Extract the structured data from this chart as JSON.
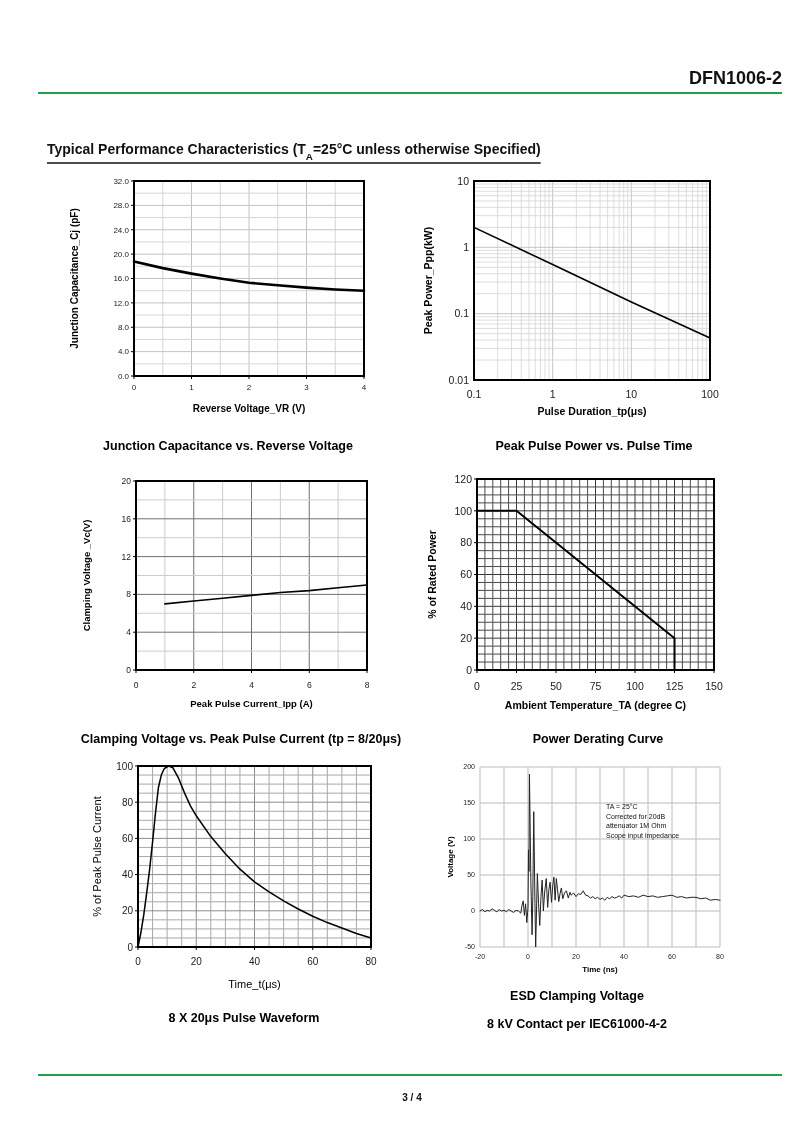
{
  "chart_data": [
    {
      "type": "line",
      "title": "Junction Capacitance vs. Reverse Voltage",
      "xlabel": "Reverse Voltage_VR (V)",
      "ylabel": "Junction Capacitance_Cj (pF)",
      "x": [
        0,
        0.5,
        1,
        1.5,
        2,
        2.5,
        3,
        3.5,
        4
      ],
      "series": [
        {
          "color": "#000000",
          "values": [
            18.8,
            17.7,
            16.8,
            16.0,
            15.3,
            14.9,
            14.5,
            14.2,
            14.0
          ]
        }
      ],
      "xlim": [
        0,
        4
      ],
      "ylim": [
        0,
        32
      ],
      "xticks": [
        0,
        {
          "value": 0.5,
          "label": null
        },
        1,
        {
          "value": 1.5,
          "label": null
        },
        2,
        {
          "value": 2.5,
          "label": null
        },
        3,
        {
          "value": 3.5,
          "label": null
        },
        4
      ],
      "yticks": [
        {
          "value": 0,
          "label": "0.0"
        },
        {
          "value": 2,
          "label": null
        },
        {
          "value": 4,
          "label": "4.0"
        },
        {
          "value": 6,
          "label": null
        },
        {
          "value": 8,
          "label": "8.0"
        },
        {
          "value": 10,
          "label": null
        },
        {
          "value": 12,
          "label": "12.0"
        },
        {
          "value": 14,
          "label": null
        },
        {
          "value": 16,
          "label": "16.0"
        },
        {
          "value": 18,
          "label": null
        },
        {
          "value": 20,
          "label": "20.0"
        },
        {
          "value": 22,
          "label": null
        },
        {
          "value": 24,
          "label": "24.0"
        },
        {
          "value": 26,
          "label": null
        },
        {
          "value": 28,
          "label": "28.0"
        },
        {
          "value": 30,
          "label": null
        },
        {
          "value": 32,
          "label": "32.0"
        }
      ],
      "grid": true,
      "annotations": [
        "Typical Performance Characteristics (T$_{A}$=25°C unless otherwise Specified)",
        "DFN1006-2"
      ]
    },
    {
      "type": "line",
      "title": "Peak Pulse Power vs. Pulse Time",
      "xlabel": "Pulse Duration_tp(μs)",
      "ylabel": "Peak Power_Ppp(kW)",
      "x": [
        0.1,
        1,
        10,
        100
      ],
      "series": [
        {
          "color": "#000000",
          "values": [
            2,
            0.55,
            0.15,
            0.043
          ]
        }
      ],
      "log": "xy",
      "xlim": [
        0.1,
        100
      ],
      "ylim": [
        0.01,
        10
      ],
      "xticks": [
        0.1,
        {
          "value": 0.2,
          "label": null
        },
        {
          "value": 0.3,
          "label": null
        },
        {
          "value": 0.4,
          "label": null
        },
        {
          "value": 0.5,
          "label": null
        },
        {
          "value": 0.6,
          "label": null
        },
        {
          "value": 0.7,
          "label": null
        },
        {
          "value": 0.8,
          "label": null
        },
        {
          "value": 0.9,
          "label": null
        },
        1,
        {
          "value": 2,
          "label": null
        },
        {
          "value": 3,
          "label": null
        },
        {
          "value": 4,
          "label": null
        },
        {
          "value": 5,
          "label": null
        },
        {
          "value": 6,
          "label": null
        },
        {
          "value": 7,
          "label": null
        },
        {
          "value": 8,
          "label": null
        },
        {
          "value": 9,
          "label": null
        },
        10,
        {
          "value": 20,
          "label": null
        },
        {
          "value": 30,
          "label": null
        },
        {
          "value": 40,
          "label": null
        },
        {
          "value": 50,
          "label": null
        },
        {
          "value": 60,
          "label": null
        },
        {
          "value": 70,
          "label": null
        },
        {
          "value": 80,
          "label": null
        },
        {
          "value": 90,
          "label": null
        },
        100
      ],
      "yticks": [
        0.01,
        {
          "value": 0.02,
          "label": null
        },
        {
          "value": 0.03,
          "label": null
        },
        {
          "value": 0.04,
          "label": null
        },
        {
          "value": 0.05,
          "label": null
        },
        {
          "value": 0.06,
          "label": null
        },
        {
          "value": 0.07,
          "label": null
        },
        {
          "value": 0.08,
          "label": null
        },
        {
          "value": 0.09,
          "label": null
        },
        0.1,
        {
          "value": 0.2,
          "label": null
        },
        {
          "value": 0.3,
          "label": null
        },
        {
          "value": 0.4,
          "label": null
        },
        {
          "value": 0.5,
          "label": null
        },
        {
          "value": 0.6,
          "label": null
        },
        {
          "value": 0.7,
          "label": null
        },
        {
          "value": 0.8,
          "label": null
        },
        {
          "value": 0.9,
          "label": null
        },
        1,
        {
          "value": 2,
          "label": null
        },
        {
          "value": 3,
          "label": null
        },
        {
          "value": 4,
          "label": null
        },
        {
          "value": 5,
          "label": null
        },
        {
          "value": 6,
          "label": null
        },
        {
          "value": 7,
          "label": null
        },
        {
          "value": 8,
          "label": null
        },
        {
          "value": 9,
          "label": null
        },
        10
      ],
      "grid": true
    },
    {
      "type": "line",
      "title": "Clamping Voltage vs. Peak Pulse Current (tp = 8/20μs)",
      "xlabel": "Peak Pulse Current_Ipp (A)",
      "ylabel": "Clamping Voltage _Vc(V)",
      "x": [
        1,
        2,
        3,
        4,
        5,
        6,
        7,
        8
      ],
      "series": [
        {
          "color": "#000000",
          "values": [
            7.0,
            7.3,
            7.6,
            7.9,
            8.2,
            8.4,
            8.7,
            9.0
          ]
        }
      ],
      "xlim": [
        0,
        8
      ],
      "ylim": [
        0,
        20
      ],
      "xticks": [
        0,
        {
          "value": 1,
          "label": null
        },
        2,
        {
          "value": 3,
          "label": null
        },
        4,
        {
          "value": 5,
          "label": null
        },
        6,
        {
          "value": 7,
          "label": null
        },
        8
      ],
      "yticks": [
        0,
        {
          "value": 2,
          "label": null
        },
        4,
        {
          "value": 6,
          "label": null
        },
        8,
        {
          "value": 10,
          "label": null
        },
        12,
        {
          "value": 14,
          "label": null
        },
        16,
        {
          "value": 18,
          "label": null
        },
        20
      ],
      "grid": true
    },
    {
      "type": "line",
      "title": "Power Derating Curve",
      "xlabel": "Ambient Temperature_TA (degree C)",
      "ylabel": "% of Rated Power",
      "x": [
        0,
        25,
        125,
        125
      ],
      "series": [
        {
          "color": "#000000",
          "values": [
            100,
            100,
            20,
            0
          ]
        }
      ],
      "xlim": [
        0,
        150
      ],
      "ylim": [
        0,
        120
      ],
      "xticks": [
        0,
        {
          "value": 5,
          "label": null
        },
        {
          "value": 10,
          "label": null
        },
        {
          "value": 15,
          "label": null
        },
        {
          "value": 20,
          "label": null
        },
        25,
        {
          "value": 30,
          "label": null
        },
        {
          "value": 35,
          "label": null
        },
        {
          "value": 40,
          "label": null
        },
        {
          "value": 45,
          "label": null
        },
        50,
        {
          "value": 55,
          "label": null
        },
        {
          "value": 60,
          "label": null
        },
        {
          "value": 65,
          "label": null
        },
        {
          "value": 70,
          "label": null
        },
        75,
        {
          "value": 80,
          "label": null
        },
        {
          "value": 85,
          "label": null
        },
        {
          "value": 90,
          "label": null
        },
        {
          "value": 95,
          "label": null
        },
        100,
        {
          "value": 105,
          "label": null
        },
        {
          "value": 110,
          "label": null
        },
        {
          "value": 115,
          "label": null
        },
        {
          "value": 120,
          "label": null
        },
        125,
        {
          "value": 130,
          "label": null
        },
        {
          "value": 135,
          "label": null
        },
        {
          "value": 140,
          "label": null
        },
        {
          "value": 145,
          "label": null
        },
        150
      ],
      "yticks": [
        0,
        {
          "value": 5,
          "label": null
        },
        {
          "value": 10,
          "label": null
        },
        {
          "value": 15,
          "label": null
        },
        20,
        {
          "value": 25,
          "label": null
        },
        {
          "value": 30,
          "label": null
        },
        {
          "value": 35,
          "label": null
        },
        40,
        {
          "value": 45,
          "label": null
        },
        {
          "value": 50,
          "label": null
        },
        {
          "value": 55,
          "label": null
        },
        60,
        {
          "value": 65,
          "label": null
        },
        {
          "value": 70,
          "label": null
        },
        {
          "value": 75,
          "label": null
        },
        80,
        {
          "value": 85,
          "label": null
        },
        {
          "value": 90,
          "label": null
        },
        {
          "value": 95,
          "label": null
        },
        100,
        {
          "value": 105,
          "label": null
        },
        {
          "value": 110,
          "label": null
        },
        {
          "value": 115,
          "label": null
        },
        120
      ],
      "grid": true
    },
    {
      "type": "line",
      "title": "8 X 20μs Pulse Waveform",
      "xlabel": "Time_t(μs)",
      "ylabel": "% of Peak Pulse Current",
      "x": [
        0,
        1,
        2,
        3,
        4,
        5,
        6,
        7,
        8,
        9,
        10.5,
        12,
        14,
        16,
        18,
        20,
        25,
        30,
        35,
        40,
        45,
        50,
        55,
        60,
        65,
        70,
        75,
        80
      ],
      "series": [
        {
          "color": "#000000",
          "values": [
            0,
            8,
            18,
            30,
            43,
            58,
            74,
            88,
            95,
            98.5,
            100,
            99,
            93,
            85,
            78,
            72.5,
            61,
            51.5,
            43,
            36,
            30.5,
            25.5,
            21,
            17,
            13.5,
            10.5,
            7.5,
            5
          ]
        }
      ],
      "xlim": [
        0,
        80
      ],
      "ylim": [
        0,
        100
      ],
      "xticks": [
        0,
        {
          "value": 5,
          "label": null
        },
        {
          "value": 10,
          "label": null
        },
        {
          "value": 15,
          "label": null
        },
        20,
        {
          "value": 25,
          "label": null
        },
        {
          "value": 30,
          "label": null
        },
        {
          "value": 35,
          "label": null
        },
        40,
        {
          "value": 45,
          "label": null
        },
        {
          "value": 50,
          "label": null
        },
        {
          "value": 55,
          "label": null
        },
        60,
        {
          "value": 65,
          "label": null
        },
        {
          "value": 70,
          "label": null
        },
        {
          "value": 75,
          "label": null
        },
        80
      ],
      "yticks": [
        0,
        {
          "value": 5,
          "label": null
        },
        {
          "value": 10,
          "label": null
        },
        {
          "value": 15,
          "label": null
        },
        20,
        {
          "value": 25,
          "label": null
        },
        {
          "value": 30,
          "label": null
        },
        {
          "value": 35,
          "label": null
        },
        40,
        {
          "value": 45,
          "label": null
        },
        {
          "value": 50,
          "label": null
        },
        {
          "value": 55,
          "label": null
        },
        60,
        {
          "value": 65,
          "label": null
        },
        {
          "value": 70,
          "label": null
        },
        {
          "value": 75,
          "label": null
        },
        80,
        {
          "value": 85,
          "label": null
        },
        {
          "value": 90,
          "label": null
        },
        {
          "value": 95,
          "label": null
        },
        100
      ],
      "grid": true
    },
    {
      "type": "line",
      "title": "ESD Clamping Voltage",
      "subtitle": "8 kV Contact per IEC61000-4-2",
      "xlabel": "Time (ns)",
      "ylabel": "Voltage (V)",
      "x": [
        -20,
        -19,
        -18,
        -17,
        -16,
        -15,
        -14,
        -13,
        -12,
        -11,
        -10,
        -9,
        -8,
        -7,
        -6,
        -5,
        -4,
        -3,
        -2.5,
        -2,
        -1.5,
        -1,
        -0.5,
        0,
        0.2,
        0.4,
        0.6,
        1.2,
        1.7,
        2,
        2.4,
        2.9,
        3.2,
        3.9,
        4.4,
        4.9,
        5.4,
        5.9,
        6.4,
        6.9,
        7.6,
        8.2,
        8.7,
        9.2,
        9.8,
        10.3,
        10.8,
        11.3,
        11.8,
        12.3,
        12.8,
        13.4,
        13.9,
        14.5,
        15.2,
        16,
        16.8,
        17.5,
        18,
        19,
        20,
        21,
        22,
        23,
        24,
        25,
        26,
        27,
        28,
        29,
        30,
        31,
        32,
        33,
        34,
        35,
        36,
        37,
        38,
        39,
        40,
        42,
        44,
        46,
        48,
        50,
        52,
        54,
        56,
        58,
        60,
        62,
        64,
        66,
        68,
        70,
        72,
        74,
        76,
        78,
        80
      ],
      "series": [
        {
          "color": "#222222",
          "values": [
            0,
            2,
            -1,
            1,
            0,
            3,
            1,
            -1,
            2,
            0,
            1,
            -1,
            2,
            0,
            -2,
            1,
            0,
            -3,
            8,
            14,
            -6,
            10,
            -16,
            5,
            85,
            55,
            190,
            40,
            -33,
            20,
            138,
            10,
            -50,
            52,
            10,
            -20,
            20,
            43,
            0,
            25,
            45,
            5,
            30,
            40,
            12,
            35,
            47,
            15,
            45,
            30,
            13,
            25,
            32,
            17,
            25,
            28,
            18,
            26,
            22,
            25,
            20,
            24,
            23,
            28,
            22,
            21,
            18,
            20,
            17,
            19,
            16,
            18,
            15,
            19,
            17,
            20,
            18,
            19,
            21,
            18,
            22,
            20,
            21,
            19,
            22,
            20,
            21,
            19,
            20,
            21,
            22,
            19,
            20,
            18,
            19,
            19,
            17,
            18,
            15,
            16,
            15
          ]
        }
      ],
      "xlim": [
        -20,
        80
      ],
      "ylim": [
        -50,
        200
      ],
      "xticks": [
        -20,
        {
          "value": -10,
          "label": null
        },
        0,
        {
          "value": 10,
          "label": null
        },
        20,
        {
          "value": 30,
          "label": null
        },
        40,
        {
          "value": 50,
          "label": null
        },
        60,
        {
          "value": 70,
          "label": null
        },
        80
      ],
      "yticks": [
        -50,
        0,
        50,
        100,
        150,
        200
      ],
      "grid": true,
      "annotations": [
        "TA = 25°C\nCorrected for 20dB\nattenuator 1M Ohm\nScope input impedance",
        "3 / 4"
      ]
    }
  ]
}
